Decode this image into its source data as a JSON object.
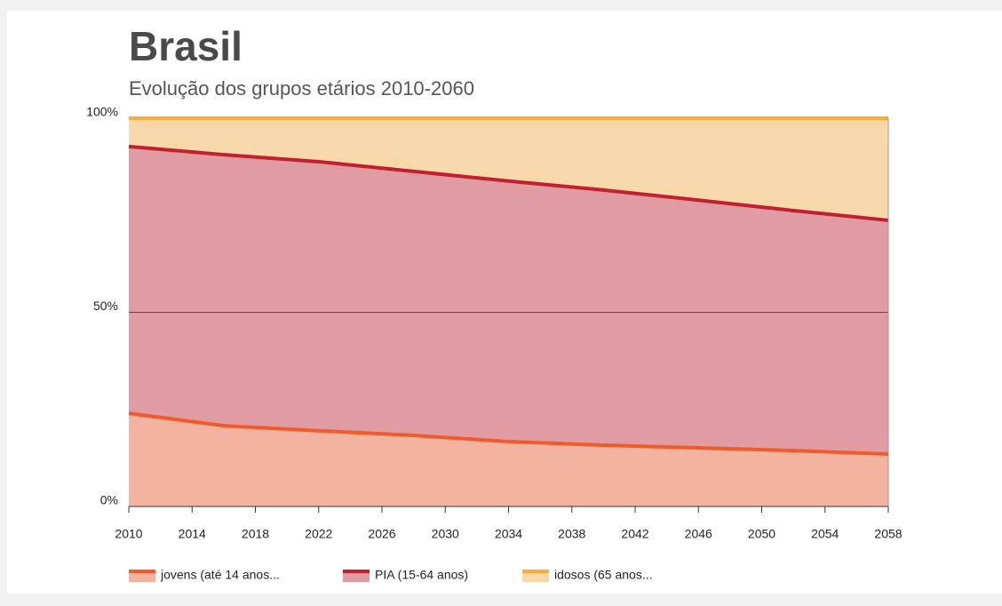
{
  "chart_data": {
    "type": "stacked_area",
    "title": "Brasil",
    "subtitle": "Evolução dos grupos etários 2010-2060",
    "x": [
      2010,
      2016,
      2022,
      2028,
      2034,
      2040,
      2046,
      2052,
      2058
    ],
    "series": [
      {
        "name": "jovens (até 14 anos...",
        "color": "#f15a2b",
        "fill": "#f4b3a0",
        "values": [
          24.0,
          20.8,
          19.5,
          18.3,
          16.7,
          15.8,
          15.1,
          14.4,
          13.5
        ]
      },
      {
        "name": "PIA (15-64 anos)",
        "color": "#c0202f",
        "fill": "#e09ba3",
        "values": [
          68.7,
          69.8,
          69.3,
          68.0,
          67.1,
          65.7,
          63.8,
          61.8,
          60.2
        ]
      },
      {
        "name": "idosos (65 anos...",
        "color": "#f9ac3a",
        "fill": "#f7d8aa",
        "values": [
          7.3,
          9.4,
          11.2,
          13.7,
          16.2,
          18.5,
          21.1,
          23.8,
          26.3
        ]
      }
    ],
    "xlim": [
      2010,
      2058
    ],
    "xticks": [
      2010,
      2014,
      2018,
      2022,
      2026,
      2030,
      2034,
      2038,
      2042,
      2046,
      2050,
      2054,
      2058
    ],
    "ylim": [
      0,
      100
    ],
    "yticks": [
      {
        "value": 0,
        "label": "0%"
      },
      {
        "value": 50,
        "label": "50%"
      },
      {
        "value": 100,
        "label": "100%"
      }
    ],
    "grid": true
  }
}
